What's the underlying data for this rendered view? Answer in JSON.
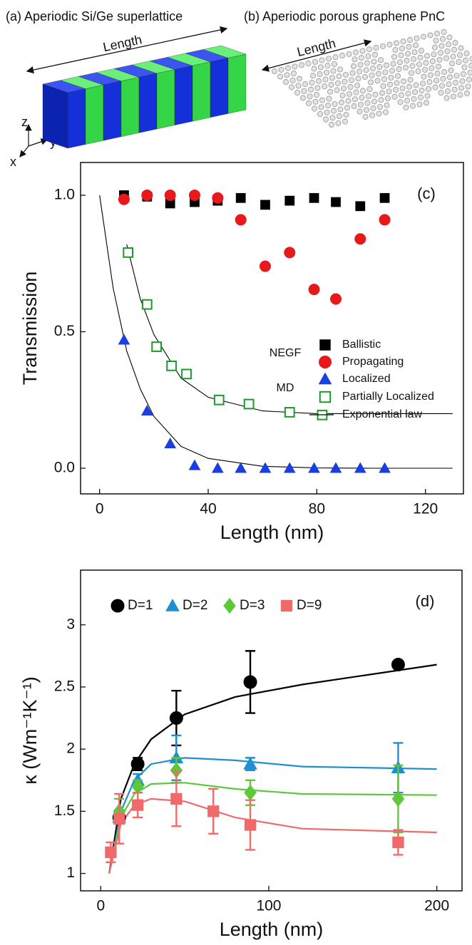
{
  "illustrations": {
    "a": {
      "label": "(a) Aperiodic Si/Ge superlattice",
      "arrow_label": "Length",
      "axes": [
        "z",
        "y",
        "x"
      ]
    },
    "b": {
      "label": "(b) Aperiodic porous graphene PnC",
      "arrow_label": "Length"
    }
  },
  "chart_data": [
    {
      "type": "scatter",
      "panel_label": "(c)",
      "x_label": "Length (nm)",
      "y_label": "Transmission",
      "xlim": [
        -7,
        134
      ],
      "ylim": [
        -0.094,
        1.12
      ],
      "xticks": [
        0,
        40,
        80,
        120
      ],
      "yticks": [
        {
          "value": 0,
          "label": "0.0"
        },
        {
          "value": 0.5,
          "label": "0.5"
        },
        {
          "value": 1,
          "label": "1.0"
        }
      ],
      "legend_groups": [
        {
          "label": "NEGF"
        },
        {
          "label": "MD"
        }
      ],
      "series": [
        {
          "name": "Ballistic",
          "color": "#000000",
          "marker": "square",
          "filled": true,
          "x": [
            9,
            17.5,
            26,
            35,
            43.5,
            52,
            61,
            70,
            79,
            87,
            96,
            105
          ],
          "values": [
            1.0,
            0.995,
            0.97,
            0.975,
            0.98,
            0.99,
            0.965,
            0.98,
            0.99,
            0.975,
            0.96,
            0.99
          ]
        },
        {
          "name": "Propagating",
          "color": "#e8191b",
          "marker": "circle",
          "filled": true,
          "x": [
            9,
            17.5,
            26,
            35,
            43.5,
            52,
            61,
            70,
            79,
            87,
            96,
            105
          ],
          "values": [
            0.985,
            1.0,
            1.0,
            1.0,
            0.99,
            0.91,
            0.74,
            0.79,
            0.655,
            0.62,
            0.84,
            0.91
          ]
        },
        {
          "name": "Localized",
          "color": "#1a3fe0",
          "marker": "triangle",
          "filled": true,
          "x": [
            9,
            17.5,
            26,
            35,
            43.5,
            52,
            61,
            70,
            79,
            87,
            96,
            105
          ],
          "values": [
            0.47,
            0.21,
            0.09,
            0.01,
            0,
            0,
            0,
            0,
            0,
            0,
            0,
            0
          ]
        },
        {
          "name": "Partially Localized",
          "color": "#1a9a2a",
          "marker": "square",
          "filled": false,
          "x": [
            10.5,
            17.5,
            21,
            26.5,
            32,
            44,
            55,
            70,
            82
          ],
          "values": [
            0.79,
            0.6,
            0.445,
            0.375,
            0.345,
            0.25,
            0.235,
            0.205,
            0.195
          ]
        }
      ],
      "fit_name": "Exponential law",
      "fits": [
        {
          "color": "#000000",
          "x": [
            0,
            5,
            10,
            15,
            20,
            30,
            40,
            60,
            80,
            100,
            130
          ],
          "values": [
            1,
            0.66,
            0.43,
            0.29,
            0.19,
            0.08,
            0.036,
            0.007,
            0.001,
            0,
            0
          ]
        },
        {
          "color": "#000000",
          "x": [
            10,
            15,
            20,
            30,
            40,
            60,
            80,
            100,
            130
          ],
          "values": [
            0.82,
            0.62,
            0.49,
            0.33,
            0.26,
            0.21,
            0.2,
            0.2,
            0.2
          ]
        }
      ]
    },
    {
      "type": "scatter",
      "panel_label": "(d)",
      "x_label": "Length (nm)",
      "y_label": "κ (Wm⁻¹K⁻¹)",
      "xlim": [
        -12,
        215
      ],
      "ylim": [
        0.86,
        3.44
      ],
      "xticks": [
        0,
        100,
        200
      ],
      "yticks": [
        1,
        1.5,
        2,
        2.5,
        3
      ],
      "series": [
        {
          "name": "D=1",
          "color": "#000000",
          "marker": "circle",
          "filled": true,
          "x": [
            11,
            22,
            45,
            89,
            177
          ],
          "values": [
            1.45,
            1.88,
            2.25,
            2.54,
            2.68
          ],
          "errors": [
            0.05,
            0.05,
            0.22,
            0.25,
            0.03
          ]
        },
        {
          "name": "D=2",
          "color": "#1f8fd0",
          "marker": "triangle",
          "filled": true,
          "x": [
            11,
            22,
            45,
            89,
            177
          ],
          "values": [
            1.45,
            1.75,
            1.93,
            1.88,
            1.85
          ],
          "errors": [
            0.05,
            0.05,
            0.18,
            0.05,
            0.2
          ]
        },
        {
          "name": "D=3",
          "color": "#5cc83a",
          "marker": "diamond",
          "filled": true,
          "x": [
            11,
            22,
            45,
            89,
            177
          ],
          "values": [
            1.5,
            1.7,
            1.83,
            1.65,
            1.6
          ],
          "errors": [
            0.1,
            0.05,
            0.1,
            0.1,
            0.27
          ]
        },
        {
          "name": "D=9",
          "color": "#f06a6a",
          "marker": "square",
          "filled": true,
          "x": [
            6,
            11,
            22,
            45,
            67,
            89,
            177
          ],
          "values": [
            1.17,
            1.44,
            1.55,
            1.6,
            1.5,
            1.39,
            1.25
          ],
          "errors": [
            0.08,
            0.2,
            0.1,
            0.22,
            0.18,
            0.2,
            0.1
          ]
        }
      ],
      "fits": [
        {
          "color": "#000000",
          "x": [
            5,
            12,
            20,
            30,
            50,
            80,
            120,
            200
          ],
          "values": [
            1.0,
            1.6,
            1.88,
            2.08,
            2.28,
            2.42,
            2.52,
            2.68
          ]
        },
        {
          "color": "#1f8fd0",
          "x": [
            5,
            12,
            20,
            30,
            50,
            80,
            120,
            200
          ],
          "values": [
            1.0,
            1.5,
            1.75,
            1.88,
            1.93,
            1.91,
            1.86,
            1.84
          ]
        },
        {
          "color": "#5cc83a",
          "x": [
            5,
            12,
            20,
            30,
            50,
            80,
            120,
            200
          ],
          "values": [
            1.0,
            1.45,
            1.64,
            1.72,
            1.73,
            1.68,
            1.64,
            1.63
          ]
        },
        {
          "color": "#f06a6a",
          "x": [
            5,
            12,
            20,
            30,
            50,
            80,
            120,
            200
          ],
          "values": [
            1.0,
            1.4,
            1.55,
            1.6,
            1.58,
            1.45,
            1.36,
            1.33
          ]
        }
      ]
    }
  ]
}
